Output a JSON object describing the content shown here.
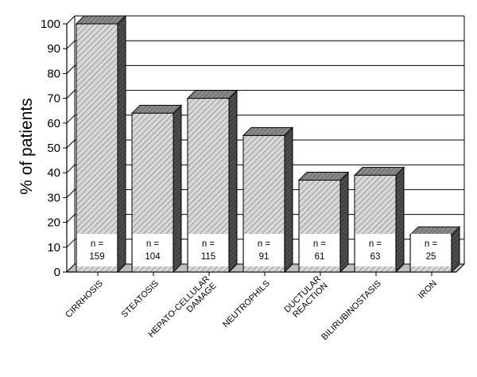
{
  "chart_data": {
    "type": "bar",
    "title": "",
    "xlabel": "",
    "ylabel": "% of patients",
    "ylim": [
      0,
      100
    ],
    "yticks": [
      0,
      10,
      20,
      30,
      40,
      50,
      60,
      70,
      80,
      90,
      100
    ],
    "grid": true,
    "legend": "none",
    "style": "3d-hatched",
    "categories": [
      "CIRRHOSIS",
      "STEATOSIS",
      "HEPATO-CELLULAR DAMAGE",
      "NEUTROPHILS",
      "DUCTULAR REACTION",
      "BILIRUBINOSTASIS",
      "IRON"
    ],
    "category_lines": [
      [
        "CIRRHOSIS"
      ],
      [
        "STEATOSIS"
      ],
      [
        "HEPATO-CELLULAR",
        "DAMAGE"
      ],
      [
        "NEUTROPHILS"
      ],
      [
        "DUCTULAR",
        "REACTION"
      ],
      [
        "BILIRUBINOSTASIS"
      ],
      [
        "IRON"
      ]
    ],
    "values": [
      100,
      64,
      70,
      55,
      37,
      39,
      15
    ],
    "n_prefix": "n =",
    "n_values": [
      "159",
      "104",
      "115",
      "91",
      "61",
      "63",
      "25"
    ],
    "colors": {
      "bar_front": "#d8d8d8",
      "bar_hatch": "#8a8a8a",
      "bar_side": "#4d4d4d",
      "bar_top": "#8c8c8c",
      "floor": "#bdbdbd",
      "grid": "#000000"
    }
  }
}
